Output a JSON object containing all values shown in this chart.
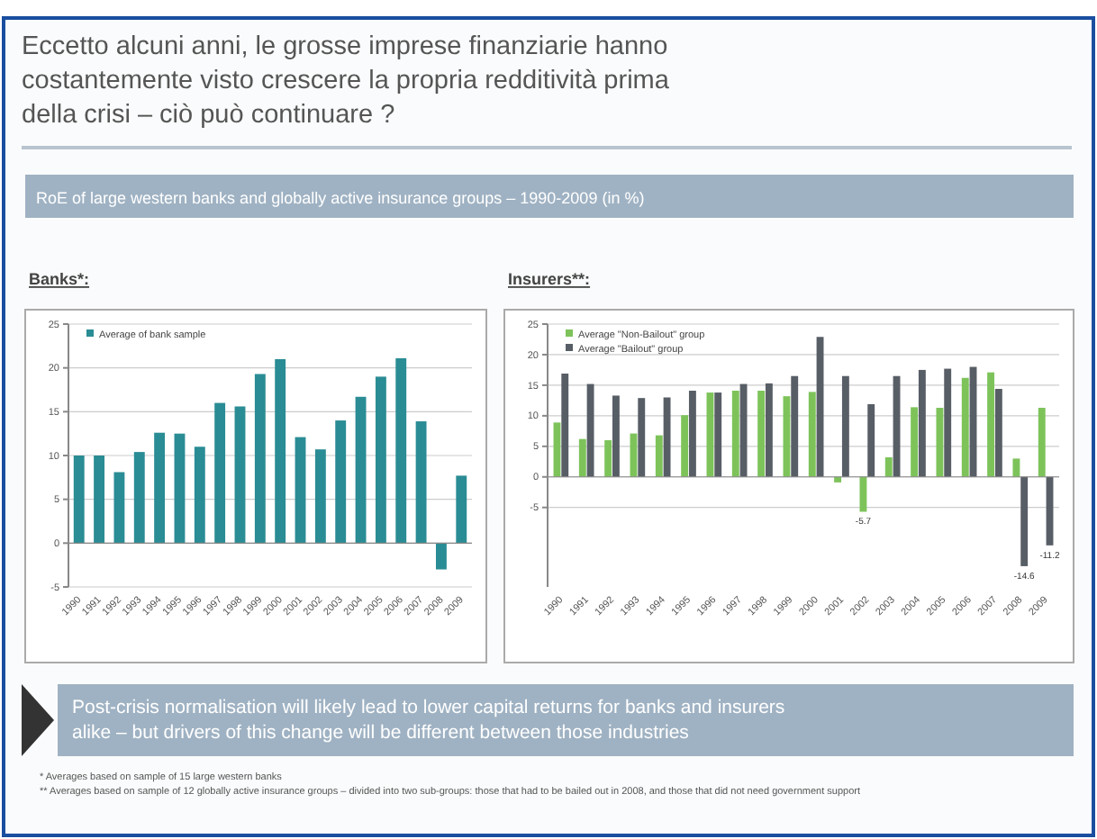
{
  "chart_data": [
    {
      "type": "other",
      "title": "Eccetto alcuni anni, le grosse imprese finanziarie hanno costantemente visto crescere la propria redditività  prima della crisi – ciò può continuare ?",
      "subtitle": "RoE of large western banks and globally active insurance groups – 1990-2009 (in %)"
    },
    {
      "type": "bar",
      "title": "Banks*:",
      "categories": [
        "1990",
        "1991",
        "1992",
        "1993",
        "1994",
        "1995",
        "1996",
        "1997",
        "1998",
        "1999",
        "2000",
        "2001",
        "2002",
        "2003",
        "2004",
        "2005",
        "2006",
        "2007",
        "2008",
        "2009"
      ],
      "series": [
        {
          "name": "Average of bank sample",
          "color": "#2a8c94",
          "values": [
            10,
            10,
            8.1,
            10.4,
            12.6,
            12.5,
            11,
            16,
            15.6,
            19.3,
            21,
            12.1,
            10.7,
            14,
            16.7,
            19,
            21.1,
            13.9,
            -3,
            7.7
          ]
        }
      ],
      "ylim": [
        -5,
        25
      ],
      "yticks": [
        -5,
        0,
        5,
        10,
        15,
        20,
        25
      ],
      "grid": "y",
      "legend": "top left"
    },
    {
      "type": "bar",
      "title": "Insurers**:",
      "categories": [
        "1990",
        "1991",
        "1992",
        "1993",
        "1994",
        "1995",
        "1996",
        "1997",
        "1998",
        "1999",
        "2000",
        "2001",
        "2002",
        "2003",
        "2004",
        "2005",
        "2006",
        "2007",
        "2008",
        "2009"
      ],
      "series": [
        {
          "name": "Average \"Non-Bailout\" group",
          "color": "#7dc35a",
          "values": [
            8.9,
            6.2,
            6,
            7.1,
            6.8,
            10.1,
            13.8,
            14.1,
            14.1,
            13.2,
            13.9,
            -0.9,
            -5.7,
            3.2,
            11.4,
            11.3,
            16.2,
            17.1,
            3,
            11.3
          ],
          "value_labels": [
            null,
            null,
            null,
            null,
            null,
            null,
            null,
            null,
            null,
            null,
            null,
            null,
            "-5.7",
            null,
            null,
            null,
            null,
            null,
            null,
            null
          ]
        },
        {
          "name": "Average \"Bailout\" group",
          "color": "#585e66",
          "values": [
            16.9,
            15.2,
            13.3,
            12.9,
            13,
            14.1,
            13.8,
            15.2,
            15.3,
            16.5,
            22.9,
            16.5,
            11.9,
            16.5,
            17.5,
            17.7,
            18,
            14.4,
            -14.6,
            -11.2
          ],
          "value_labels": [
            null,
            null,
            null,
            null,
            null,
            null,
            null,
            null,
            null,
            null,
            null,
            null,
            null,
            null,
            null,
            null,
            null,
            null,
            "-14.6",
            "-11.2"
          ]
        }
      ],
      "ylim": [
        -18,
        25
      ],
      "yticks": [
        -5,
        0,
        5,
        10,
        15,
        20,
        25
      ],
      "grid": "y",
      "legend": "top left"
    },
    {
      "type": "other",
      "annotations": [
        "Post-crisis normalisation will likely lead to lower capital returns for banks and insurers alike – but drivers of this change will be different between those industries",
        "* Averages based on sample of 15 large western banks",
        "** Averages based on sample of 12 globally active insurance groups – divided into two sub-groups: those that had to be bailed out in 2008, and those that did not need government support"
      ]
    }
  ]
}
